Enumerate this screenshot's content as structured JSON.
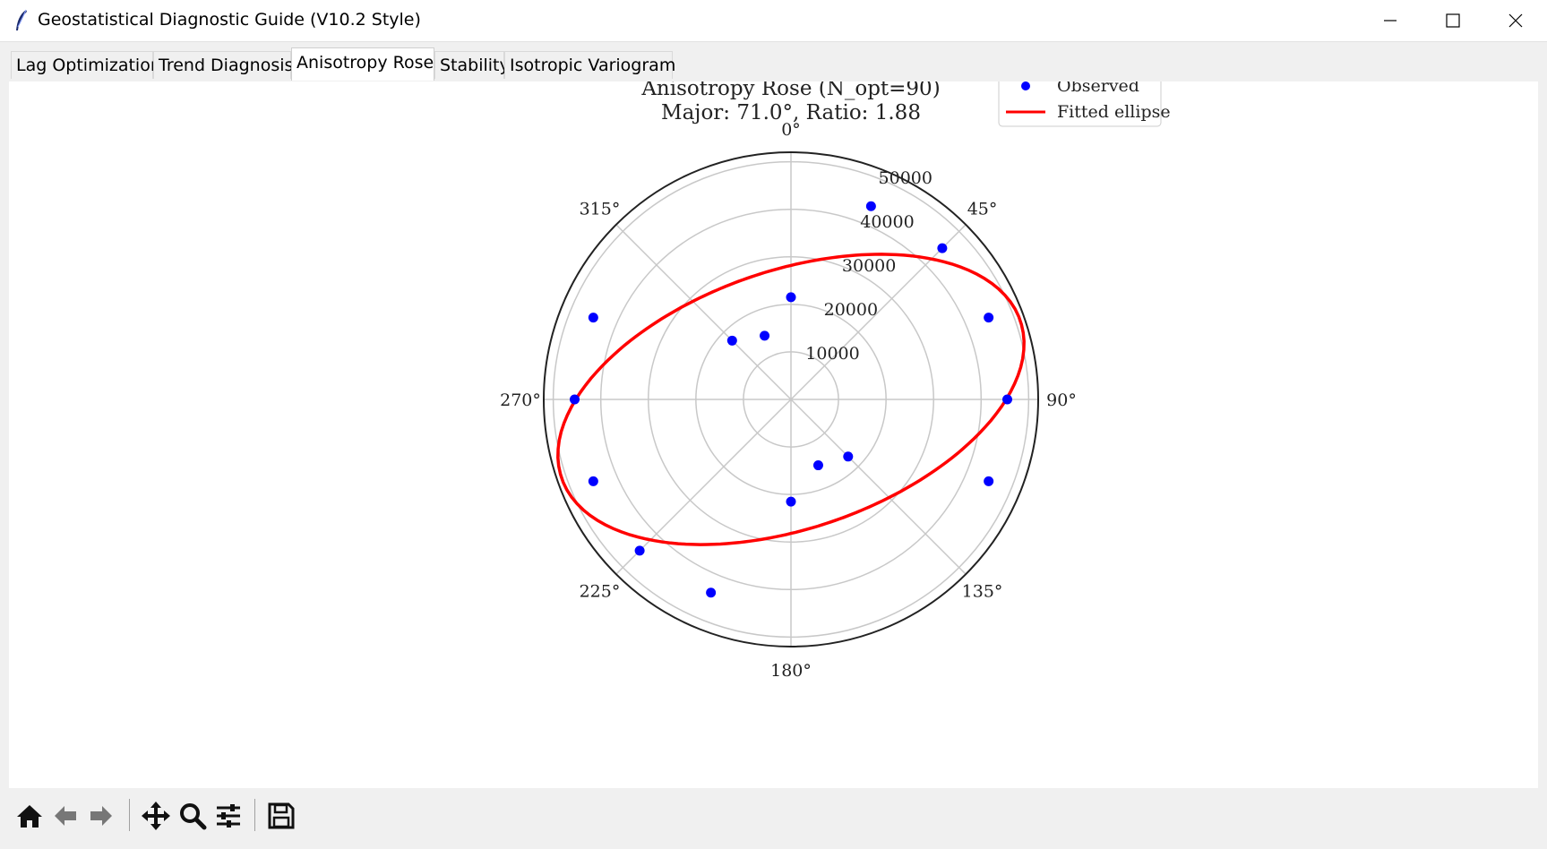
{
  "window": {
    "title": "Geostatistical Diagnostic Guide (V10.2 Style)",
    "controls": [
      "minimize-icon",
      "maximize-icon",
      "close-icon"
    ]
  },
  "tabs": [
    {
      "label": "Lag Optimization",
      "active": false
    },
    {
      "label": "Trend Diagnosis",
      "active": false
    },
    {
      "label": "Anisotropy Rose",
      "active": true
    },
    {
      "label": "Stability",
      "active": false
    },
    {
      "label": "Isotropic Variogram",
      "active": false
    }
  ],
  "chart_data": {
    "type": "scatter",
    "projection": "polar",
    "title": "Anisotropy Rose (N_opt=90)",
    "subtitle": "Major: 71.0°, Ratio: 1.88",
    "theta_zero": "north",
    "theta_direction": "clockwise",
    "angle_ticks": [
      "0°",
      "45°",
      "90°",
      "135°",
      "180°",
      "225°",
      "270°",
      "315°"
    ],
    "radial_ticks": [
      "10000",
      "20000",
      "30000",
      "40000",
      "50000"
    ],
    "rlim": [
      0,
      52000
    ],
    "grid": true,
    "legend": {
      "placement": "top-right",
      "entries": [
        "Observed",
        "Fitted ellipse"
      ]
    },
    "series": [
      {
        "name": "Observed",
        "color": "#0000ff",
        "marker": "circle",
        "points": [
          {
            "theta": 0,
            "r": 21500
          },
          {
            "theta": 22.5,
            "r": 44000
          },
          {
            "theta": 45,
            "r": 45000
          },
          {
            "theta": 67.5,
            "r": 45000
          },
          {
            "theta": 90,
            "r": 45500
          },
          {
            "theta": 112.5,
            "r": 45000
          },
          {
            "theta": 135,
            "r": 17000
          },
          {
            "theta": 157.5,
            "r": 15000
          },
          {
            "theta": 180,
            "r": 21500
          },
          {
            "theta": 202.5,
            "r": 44000
          },
          {
            "theta": 225,
            "r": 45000
          },
          {
            "theta": 247.5,
            "r": 45000
          },
          {
            "theta": 270,
            "r": 45500
          },
          {
            "theta": 292.5,
            "r": 45000
          },
          {
            "theta": 315,
            "r": 17500
          },
          {
            "theta": 337.5,
            "r": 14500
          }
        ]
      },
      {
        "name": "Fitted ellipse",
        "color": "#ff0000",
        "major_axis_deg": 71.0,
        "semi_major": 51000,
        "semi_minor": 27100
      }
    ]
  },
  "toolbar": {
    "tools": [
      "home-icon",
      "back-arrow-icon",
      "forward-arrow-icon",
      "pan-icon",
      "zoom-icon",
      "configure-subplots-icon",
      "save-icon"
    ]
  }
}
